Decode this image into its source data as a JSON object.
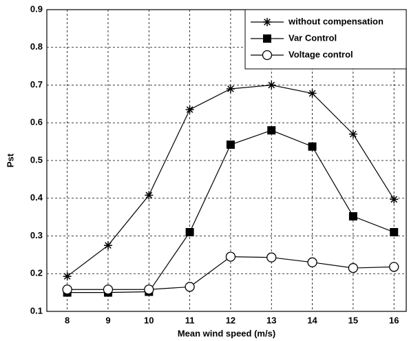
{
  "chart_data": {
    "type": "line",
    "x": [
      8,
      9,
      10,
      11,
      12,
      13,
      14,
      15,
      16
    ],
    "xlabel": "Mean wind speed (m/s)",
    "ylabel": "Pst",
    "xlim": [
      7.5,
      16.3
    ],
    "xticks": [
      8,
      9,
      10,
      11,
      12,
      13,
      14,
      15,
      16
    ],
    "ylim": [
      0.1,
      0.9
    ],
    "yticks": [
      0.1,
      0.2,
      0.3,
      0.4,
      0.5,
      0.6,
      0.7,
      0.8,
      0.9
    ],
    "grid": true,
    "legend": "upper right",
    "series": [
      {
        "name": "without compensation",
        "color": "#000000",
        "marker": "asterisk",
        "values": [
          0.193,
          0.275,
          0.408,
          0.635,
          0.69,
          0.7,
          0.678,
          0.57,
          0.397
        ]
      },
      {
        "name": "Var Control",
        "color": "#000000",
        "marker": "square",
        "values": [
          0.15,
          0.15,
          0.152,
          0.31,
          0.542,
          0.58,
          0.537,
          0.352,
          0.31
        ]
      },
      {
        "name": "Voltage control",
        "color": "#000000",
        "marker": "circle",
        "values": [
          0.158,
          0.158,
          0.158,
          0.165,
          0.245,
          0.243,
          0.23,
          0.215,
          0.218
        ]
      }
    ]
  }
}
